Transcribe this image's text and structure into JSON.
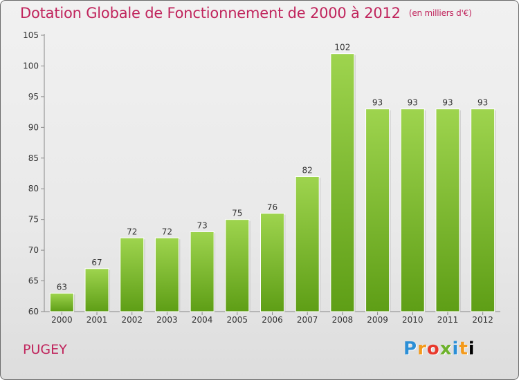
{
  "header": {
    "title": "Dotation Globale de Fonctionnement de 2000 à 2012",
    "unit": "(en milliers d'€)"
  },
  "footer": {
    "commune": "PUGEY",
    "brand": "Proxiti"
  },
  "colors": {
    "title": "#c0245c",
    "bar_top": "#9ed44e",
    "bar_bottom": "#5e9e16"
  },
  "chart_data": {
    "type": "bar",
    "title": "Dotation Globale de Fonctionnement de 2000 à 2012",
    "xlabel": "",
    "ylabel": "",
    "categories": [
      "2000",
      "2001",
      "2002",
      "2003",
      "2004",
      "2005",
      "2006",
      "2007",
      "2008",
      "2009",
      "2010",
      "2011",
      "2012"
    ],
    "values": [
      63,
      67,
      72,
      72,
      73,
      75,
      76,
      82,
      102,
      93,
      93,
      93,
      93
    ],
    "ylim": [
      60,
      105
    ],
    "yticks": [
      60,
      65,
      70,
      75,
      80,
      85,
      90,
      95,
      100,
      105
    ],
    "grid": false,
    "data_labels": true
  }
}
